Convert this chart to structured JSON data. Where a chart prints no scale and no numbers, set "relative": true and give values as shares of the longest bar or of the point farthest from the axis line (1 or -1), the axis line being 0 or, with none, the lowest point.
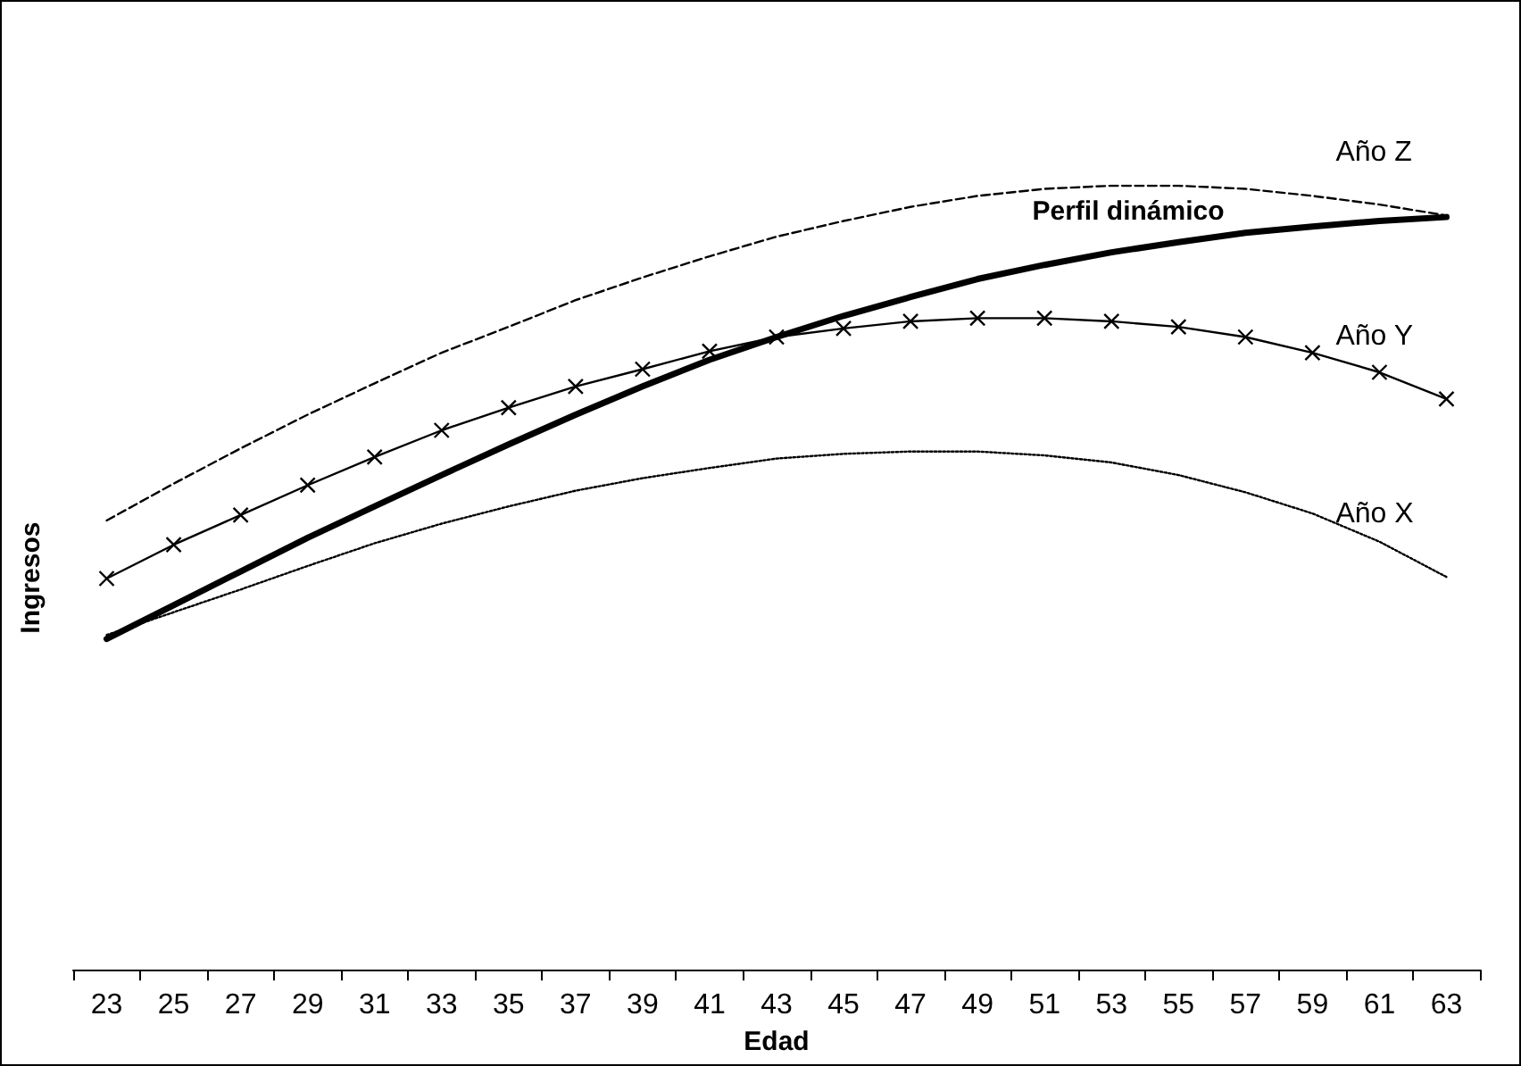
{
  "chart_data": {
    "type": "line",
    "relative": true,
    "xlabel": "Edad",
    "ylabel": "Ingresos",
    "legend": false,
    "grid": false,
    "categories": [
      "23",
      "25",
      "27",
      "29",
      "31",
      "33",
      "35",
      "37",
      "39",
      "41",
      "43",
      "45",
      "47",
      "49",
      "51",
      "53",
      "55",
      "57",
      "59",
      "61",
      "63"
    ],
    "series": [
      {
        "name": "Año Z",
        "color": "#000000",
        "line_style": "dashed",
        "marker": "none",
        "values": [
          0.573,
          0.62,
          0.665,
          0.708,
          0.748,
          0.787,
          0.82,
          0.854,
          0.883,
          0.91,
          0.935,
          0.955,
          0.973,
          0.987,
          0.996,
          1,
          1,
          0.996,
          0.987,
          0.976,
          0.962
        ]
      },
      {
        "name": "Perfil dinámico",
        "color": "#000000",
        "line_style": "solid",
        "marker": "none",
        "values": [
          0.422,
          0.465,
          0.508,
          0.551,
          0.591,
          0.631,
          0.67,
          0.708,
          0.744,
          0.778,
          0.807,
          0.834,
          0.858,
          0.881,
          0.899,
          0.915,
          0.928,
          0.94,
          0.948,
          0.955,
          0.96
        ]
      },
      {
        "name": "Año Y",
        "color": "#000000",
        "line_style": "solid",
        "marker": "cross",
        "values": [
          0.499,
          0.542,
          0.58,
          0.618,
          0.654,
          0.688,
          0.717,
          0.744,
          0.766,
          0.789,
          0.807,
          0.818,
          0.827,
          0.831,
          0.831,
          0.827,
          0.82,
          0.807,
          0.787,
          0.762,
          0.728
        ]
      },
      {
        "name": "Año X",
        "color": "#000000",
        "line_style": "dotted",
        "marker": "none",
        "values": [
          0.427,
          0.456,
          0.485,
          0.515,
          0.544,
          0.569,
          0.591,
          0.611,
          0.627,
          0.64,
          0.652,
          0.658,
          0.661,
          0.661,
          0.656,
          0.647,
          0.631,
          0.609,
          0.582,
          0.546,
          0.501
        ]
      }
    ]
  }
}
